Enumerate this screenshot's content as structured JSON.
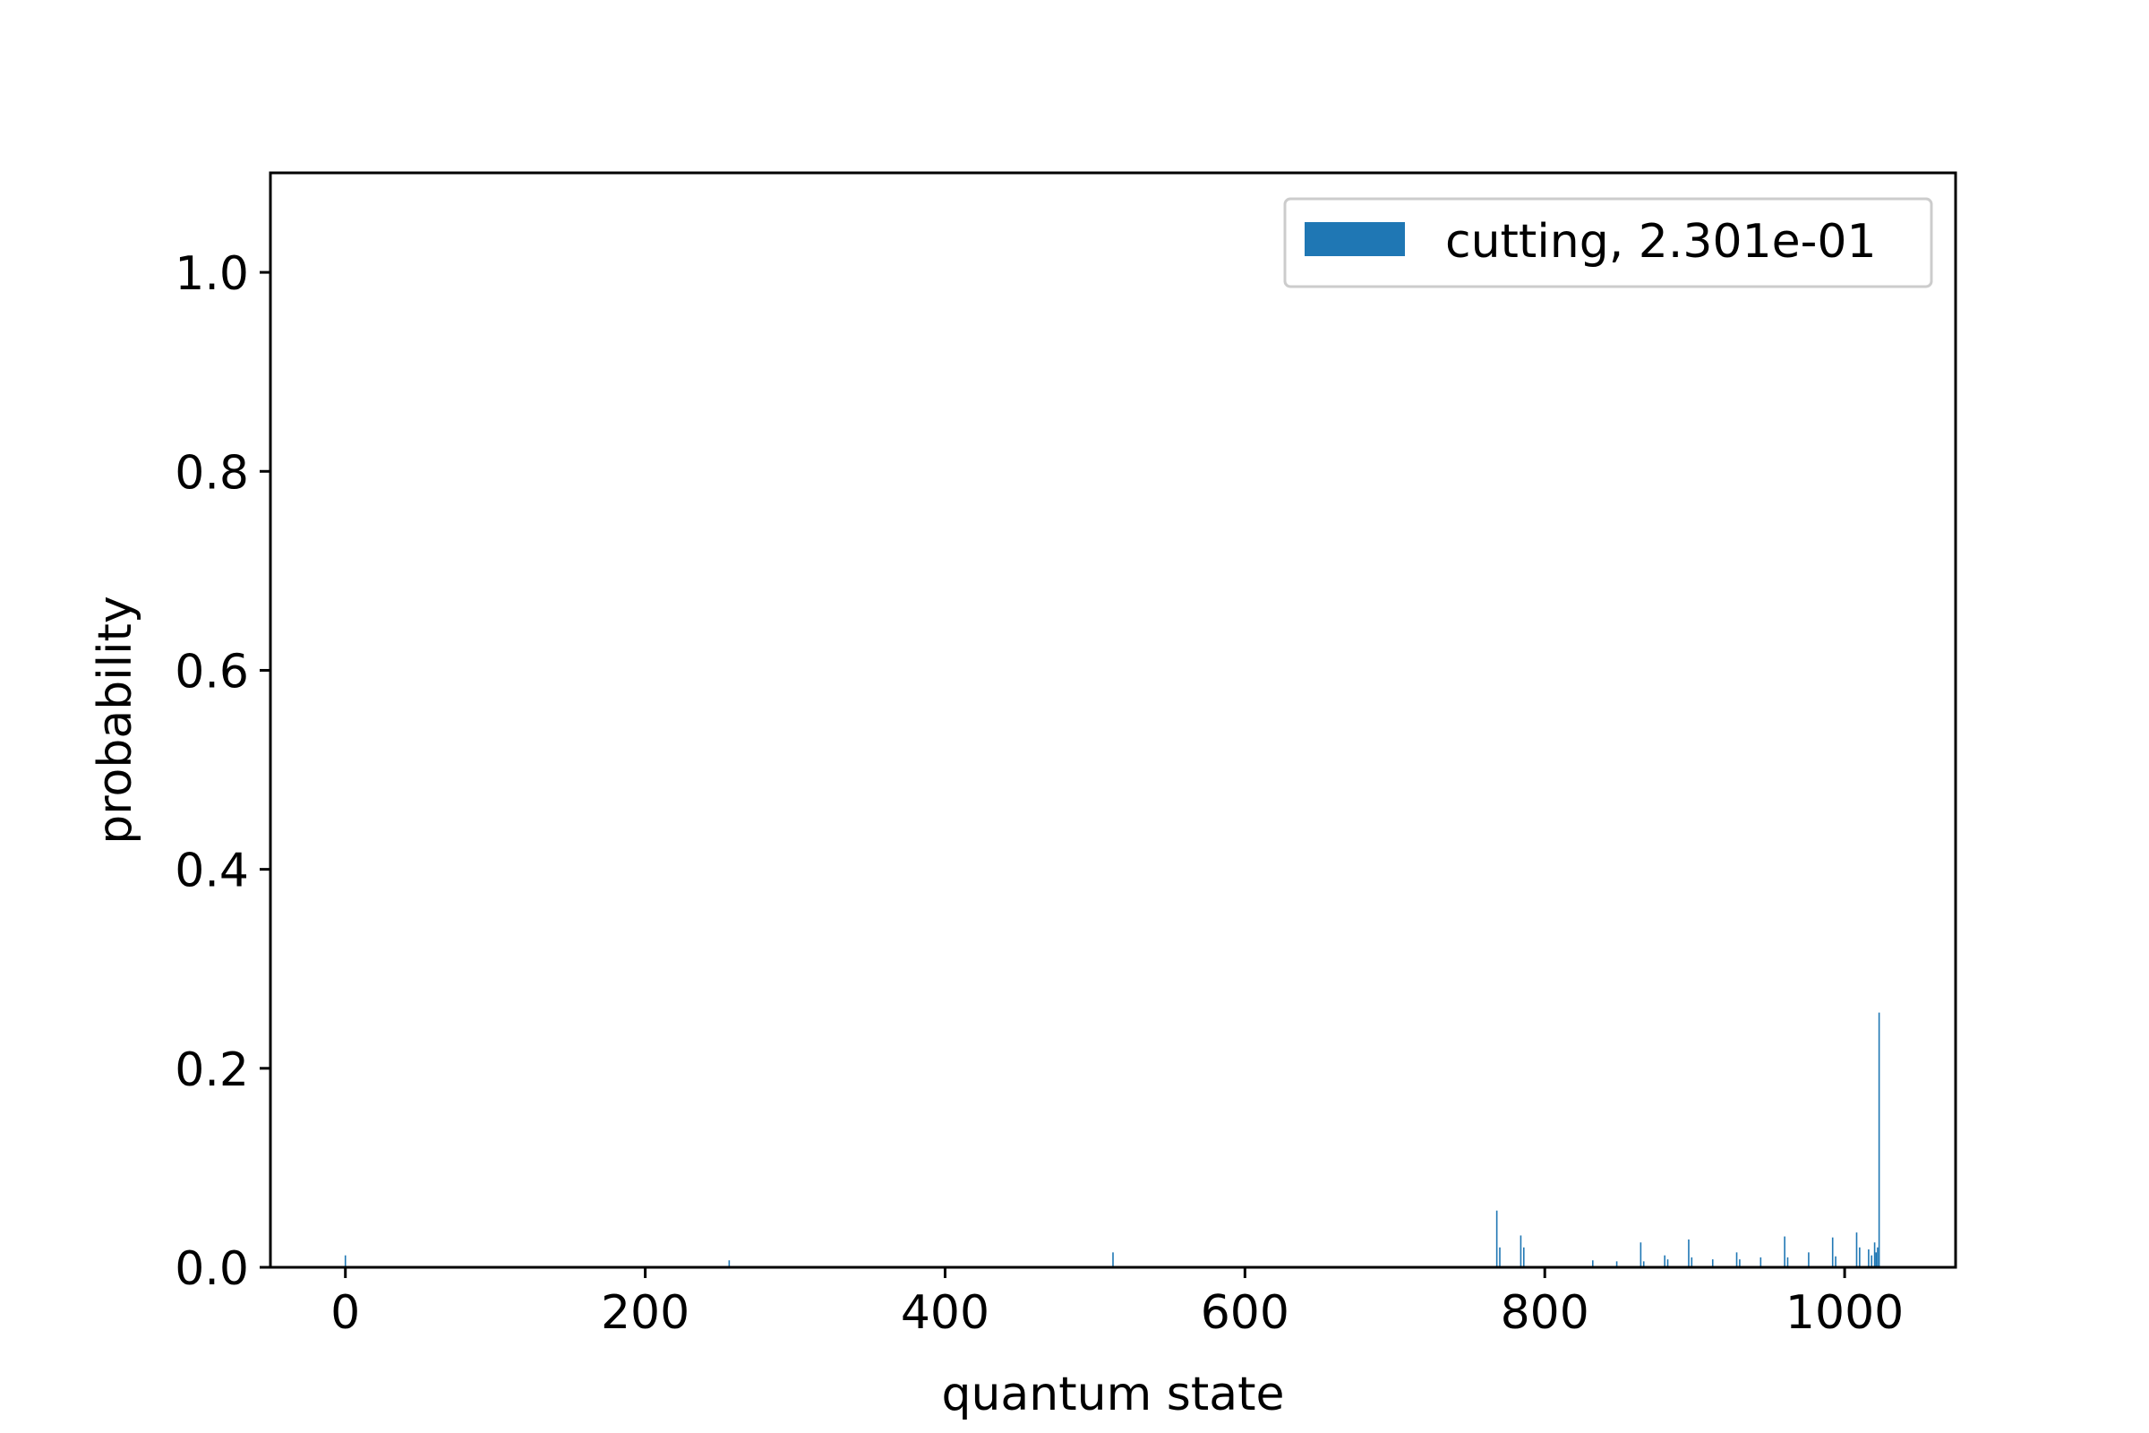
{
  "chart_data": {
    "type": "bar",
    "xlabel": "quantum state",
    "ylabel": "probability",
    "xlim": [
      -50,
      1074
    ],
    "ylim": [
      0,
      1.1
    ],
    "xticks": [
      0,
      200,
      400,
      600,
      800,
      1000
    ],
    "yticks": [
      0.0,
      0.2,
      0.4,
      0.6,
      0.8,
      1.0
    ],
    "grid": false,
    "legend_position": "top-right",
    "series": [
      {
        "name": "cutting, 2.301e-01",
        "color": "#1f77b4",
        "x": [
          0,
          256,
          512,
          768,
          770,
          784,
          786,
          832,
          848,
          864,
          866,
          880,
          882,
          896,
          898,
          912,
          928,
          930,
          944,
          960,
          962,
          976,
          992,
          994,
          1008,
          1010,
          1016,
          1018,
          1020,
          1021,
          1022,
          1023
        ],
        "values": [
          0.012,
          0.007,
          0.015,
          0.057,
          0.02,
          0.032,
          0.02,
          0.007,
          0.006,
          0.025,
          0.006,
          0.012,
          0.008,
          0.028,
          0.01,
          0.008,
          0.015,
          0.008,
          0.01,
          0.031,
          0.01,
          0.015,
          0.03,
          0.011,
          0.035,
          0.02,
          0.018,
          0.012,
          0.025,
          0.015,
          0.02,
          0.256
        ]
      }
    ]
  }
}
